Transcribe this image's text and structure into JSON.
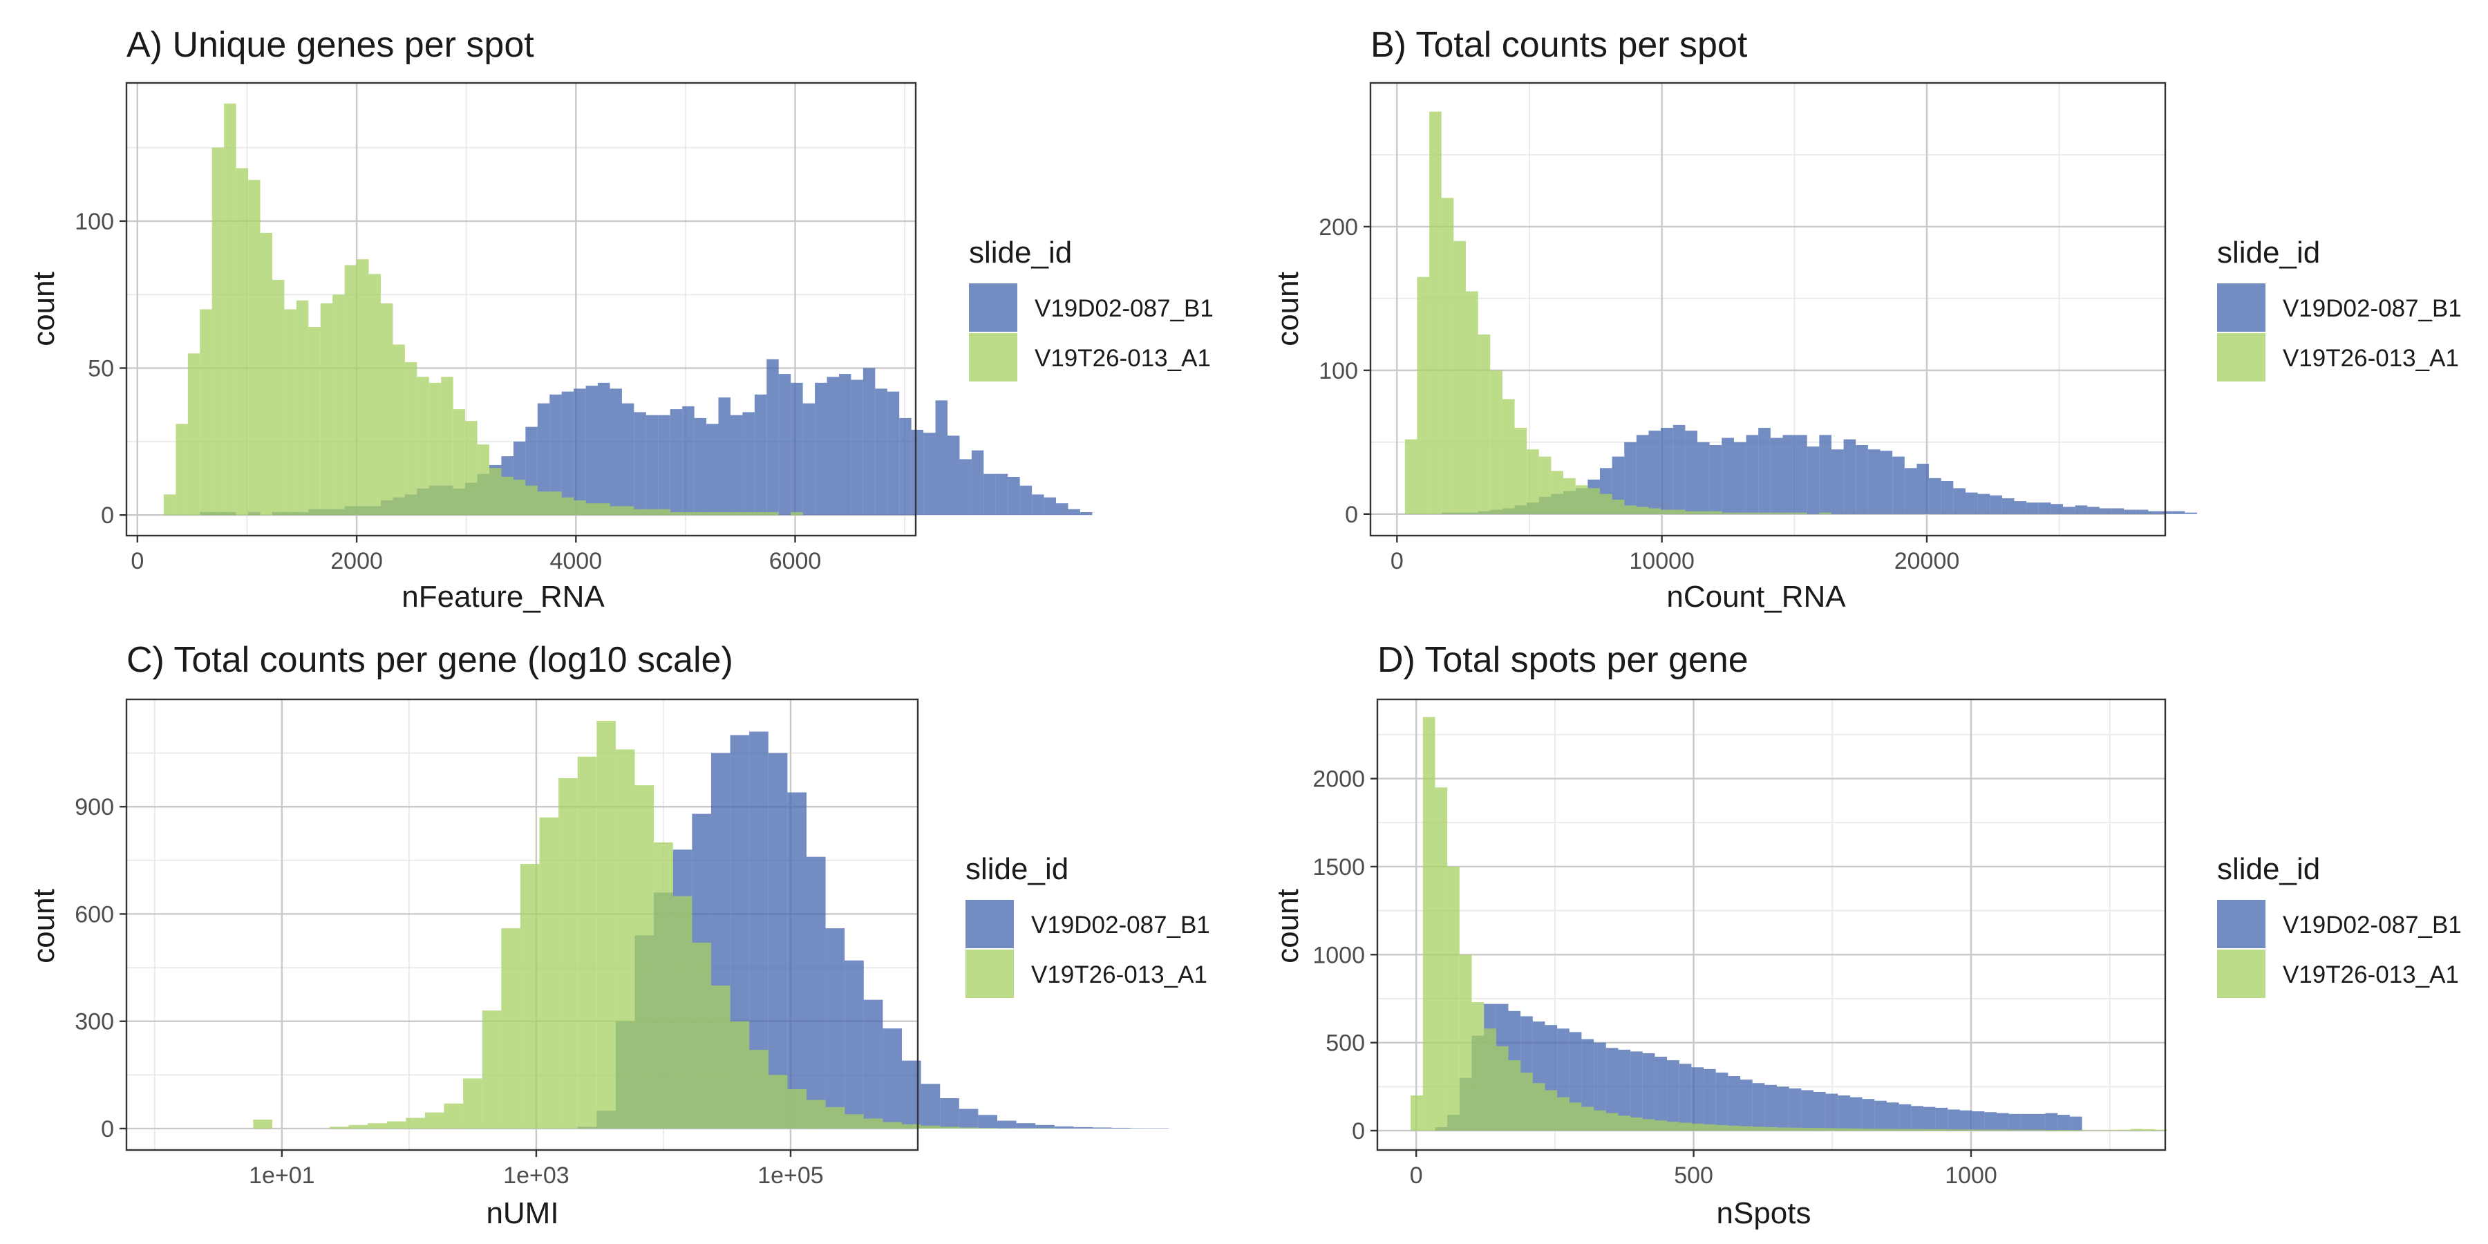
{
  "colors": {
    "V19D02-087_B1": "#4466ae",
    "V19T26-013_A1": "#a7d061",
    "grid_major": "#c9c9c9",
    "grid_minor": "#ebebeb",
    "panel_border": "#333333"
  },
  "chart_data": [
    {
      "id": "A",
      "type": "bar",
      "subtype": "histogram-overlay",
      "title": "A) Unique genes per spot",
      "xlabel": "nFeature_RNA",
      "ylabel": "count",
      "xlim": [
        -100,
        7100
      ],
      "ylim": [
        -7,
        147
      ],
      "xticks": [
        0,
        2000,
        4000,
        6000
      ],
      "xtick_labels": [
        "0",
        "2000",
        "4000",
        "6000"
      ],
      "yticks": [
        0,
        50,
        100
      ],
      "ytick_labels": [
        "0",
        "50",
        "100"
      ],
      "xminor": [
        1000,
        3000,
        5000,
        7000
      ],
      "yminor": [
        25,
        75,
        125
      ],
      "bin_start": 240,
      "bin_width": 110,
      "legend": {
        "title": "slide_id",
        "entries": [
          "V19D02-087_B1",
          "V19T26-013_A1"
        ],
        "position": "right"
      },
      "series": [
        {
          "name": "V19D02-087_B1",
          "values": [
            0,
            0,
            0,
            1,
            1,
            1,
            0,
            1,
            0,
            1,
            1,
            1,
            2,
            2,
            2,
            3,
            3,
            3,
            5,
            6,
            7,
            9,
            10,
            10,
            9,
            11,
            14,
            17,
            20,
            25,
            30,
            38,
            41,
            42,
            43,
            44,
            45,
            43,
            38,
            35,
            34,
            34,
            36,
            37,
            33,
            31,
            40,
            34,
            35,
            41,
            53,
            48,
            45,
            38,
            45,
            47,
            48,
            46,
            50,
            43,
            42,
            33,
            29,
            28,
            39,
            27,
            19,
            22,
            14,
            14,
            13,
            10,
            7,
            6,
            4,
            2,
            1
          ]
        },
        {
          "name": "V19T26-013_A1",
          "values": [
            7,
            31,
            55,
            70,
            125,
            140,
            118,
            114,
            96,
            80,
            70,
            73,
            64,
            72,
            75,
            85,
            87,
            82,
            72,
            58,
            52,
            47,
            45,
            47,
            36,
            32,
            24,
            16,
            13,
            12,
            10,
            8,
            8,
            6,
            5,
            4,
            4,
            3,
            3,
            2,
            2,
            2,
            1,
            1,
            1,
            1,
            1,
            1,
            1,
            1,
            1,
            0,
            1,
            0,
            0,
            0,
            0,
            0,
            0,
            0,
            0,
            0,
            0,
            0,
            0,
            0,
            0,
            0,
            0,
            0,
            0,
            0,
            0,
            0,
            0,
            0,
            0
          ]
        }
      ]
    },
    {
      "id": "B",
      "type": "bar",
      "subtype": "histogram-overlay",
      "title": "B) Total counts per spot",
      "xlabel": "nCount_RNA",
      "ylabel": "count",
      "xlim": [
        -1000,
        29000
      ],
      "ylim": [
        -15,
        300
      ],
      "xticks": [
        0,
        10000,
        20000
      ],
      "xtick_labels": [
        "0",
        "10000",
        "20000"
      ],
      "yticks": [
        0,
        100,
        200
      ],
      "ytick_labels": [
        "0",
        "100",
        "200"
      ],
      "xminor": [
        5000,
        15000,
        25000
      ],
      "yminor": [
        50,
        150,
        250
      ],
      "bin_start": 300,
      "bin_width": 460,
      "legend": {
        "title": "slide_id",
        "entries": [
          "V19D02-087_B1",
          "V19T26-013_A1"
        ],
        "position": "right"
      },
      "series": [
        {
          "name": "V19D02-087_B1",
          "values": [
            0,
            0,
            0,
            1,
            1,
            1,
            2,
            3,
            4,
            6,
            8,
            12,
            14,
            16,
            18,
            24,
            32,
            40,
            50,
            55,
            58,
            60,
            62,
            58,
            50,
            48,
            53,
            50,
            55,
            60,
            53,
            55,
            55,
            47,
            55,
            45,
            52,
            48,
            45,
            44,
            40,
            32,
            35,
            25,
            23,
            18,
            15,
            14,
            13,
            11,
            9,
            8,
            8,
            7,
            5,
            6,
            5,
            4,
            4,
            3,
            3,
            2,
            2,
            2,
            1
          ]
        },
        {
          "name": "V19T26-013_A1",
          "values": [
            52,
            165,
            280,
            220,
            190,
            155,
            125,
            100,
            80,
            60,
            45,
            40,
            30,
            25,
            20,
            18,
            14,
            10,
            6,
            5,
            4,
            3,
            3,
            2,
            2,
            2,
            1,
            1,
            1,
            1,
            1,
            1,
            1,
            0,
            1,
            0,
            0,
            0,
            0,
            0,
            0,
            0,
            0,
            0,
            0,
            0,
            0,
            0,
            0,
            0,
            0,
            0,
            0,
            0,
            0,
            0,
            0,
            0,
            0,
            0,
            0,
            0,
            0,
            0,
            0
          ]
        }
      ]
    },
    {
      "id": "C",
      "type": "bar",
      "subtype": "histogram-overlay-log10x",
      "title": "C) Total counts per gene (log10 scale)",
      "xlabel": "nUMI",
      "ylabel": "count",
      "xscale": "log10",
      "xlim": [
        0.6,
        1000000
      ],
      "ylim": [
        -60,
        1200
      ],
      "xticks": [
        10,
        1000,
        100000
      ],
      "xtick_labels": [
        "1e+01",
        "1e+03",
        "1e+05"
      ],
      "xminor": [
        1,
        100,
        10000,
        1000000
      ],
      "yticks": [
        0,
        300,
        600,
        900
      ],
      "ytick_labels": [
        "0",
        "300",
        "600",
        "900"
      ],
      "yminor": [
        150,
        450,
        750,
        1050
      ],
      "bin_start": 0.775,
      "bin_width_log10": 0.15,
      "legend": {
        "title": "slide_id",
        "entries": [
          "V19D02-087_B1",
          "V19T26-013_A1"
        ],
        "position": "right"
      },
      "series": [
        {
          "name": "V19D02-087_B1",
          "values": [
            0,
            0,
            0,
            0,
            0,
            0,
            0,
            0,
            0,
            0,
            0,
            0,
            0,
            0,
            0,
            0,
            0,
            5,
            50,
            300,
            540,
            660,
            780,
            880,
            1050,
            1100,
            1110,
            1050,
            940,
            760,
            560,
            470,
            360,
            280,
            190,
            125,
            85,
            55,
            38,
            22,
            15,
            10,
            6,
            4,
            3,
            2,
            1,
            1
          ]
        },
        {
          "name": "V19T26-013_A1",
          "values": [
            25,
            0,
            0,
            0,
            5,
            10,
            15,
            20,
            30,
            45,
            70,
            140,
            330,
            560,
            740,
            870,
            980,
            1040,
            1140,
            1060,
            960,
            800,
            650,
            520,
            400,
            300,
            220,
            150,
            110,
            80,
            60,
            40,
            28,
            18,
            12,
            8,
            5,
            3,
            2,
            1,
            1,
            1,
            0,
            0,
            0,
            0,
            0,
            0
          ]
        }
      ]
    },
    {
      "id": "D",
      "type": "bar",
      "subtype": "histogram-overlay",
      "title": "D) Total spots per gene",
      "xlabel": "nSpots",
      "ylabel": "count",
      "xlim": [
        -70,
        1350
      ],
      "ylim": [
        -110,
        2450
      ],
      "xticks": [
        0,
        500,
        1000
      ],
      "xtick_labels": [
        "0",
        "500",
        "1000"
      ],
      "xminor": [
        250,
        750,
        1250
      ],
      "yticks": [
        0,
        500,
        1000,
        1500,
        2000
      ],
      "ytick_labels": [
        "0",
        "500",
        "1000",
        "1500",
        "2000"
      ],
      "yminor": [
        250,
        750,
        1250,
        1750,
        2250
      ],
      "bin_start": -10,
      "bin_width": 22,
      "legend": {
        "title": "slide_id",
        "entries": [
          "V19D02-087_B1",
          "V19T26-013_A1"
        ],
        "position": "right"
      },
      "series": [
        {
          "name": "V19D02-087_B1",
          "values": [
            0,
            0,
            20,
            90,
            300,
            540,
            720,
            720,
            680,
            650,
            620,
            600,
            580,
            560,
            520,
            500,
            470,
            460,
            450,
            440,
            420,
            400,
            380,
            360,
            350,
            330,
            310,
            290,
            270,
            260,
            250,
            240,
            230,
            220,
            210,
            200,
            190,
            180,
            170,
            160,
            150,
            140,
            135,
            130,
            120,
            115,
            110,
            105,
            100,
            95,
            95,
            95,
            100,
            90,
            80,
            0,
            0,
            0,
            0,
            0,
            0,
            0
          ]
        },
        {
          "name": "V19T26-013_A1",
          "values": [
            200,
            2350,
            1950,
            1500,
            1000,
            730,
            580,
            480,
            400,
            330,
            270,
            230,
            190,
            160,
            135,
            115,
            100,
            85,
            75,
            65,
            58,
            50,
            45,
            40,
            36,
            32,
            28,
            25,
            22,
            20,
            18,
            17,
            16,
            15,
            14,
            13,
            12,
            11,
            10,
            10,
            9,
            9,
            8,
            8,
            7,
            7,
            6,
            6,
            6,
            5,
            5,
            5,
            4,
            4,
            4,
            3,
            3,
            3,
            5,
            10,
            8,
            5
          ]
        }
      ]
    }
  ]
}
